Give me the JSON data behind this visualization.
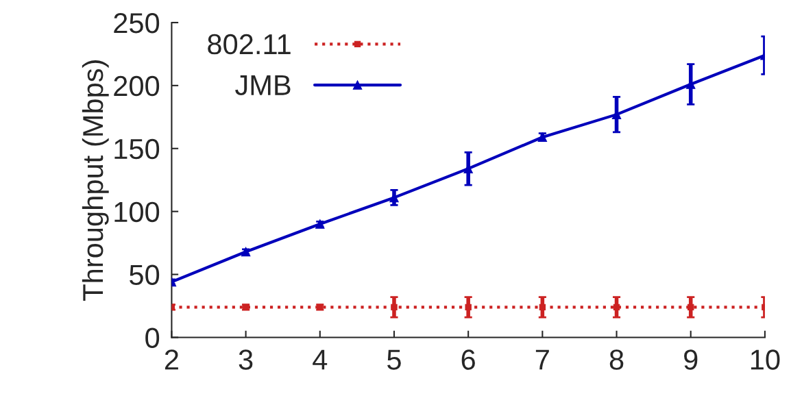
{
  "chart_data": {
    "type": "line",
    "ylabel": "Throughput (Mbps)",
    "x": [
      2,
      3,
      4,
      5,
      6,
      7,
      8,
      9,
      10
    ],
    "series": [
      {
        "name": "802.11",
        "color": "#cc2222",
        "marker": "square",
        "line_style": "dotted",
        "values": [
          24,
          24,
          24,
          24,
          24,
          24,
          24,
          24,
          24
        ],
        "errors": [
          2,
          2,
          2,
          8,
          8,
          8,
          8,
          8,
          8
        ]
      },
      {
        "name": "JMB",
        "color": "#0000bb",
        "marker": "triangle",
        "line_style": "solid",
        "values": [
          44,
          68,
          90,
          111,
          134,
          159,
          177,
          201,
          224
        ],
        "errors": [
          2,
          2,
          2,
          6,
          13,
          3,
          14,
          16,
          15
        ]
      }
    ],
    "xlim": [
      2,
      10
    ],
    "xticks": [
      2,
      3,
      4,
      5,
      6,
      7,
      8,
      9,
      10
    ],
    "ylim": [
      0,
      250
    ],
    "yticks": [
      0,
      50,
      100,
      150,
      200,
      250
    ],
    "grid": false,
    "legend": "top left"
  }
}
